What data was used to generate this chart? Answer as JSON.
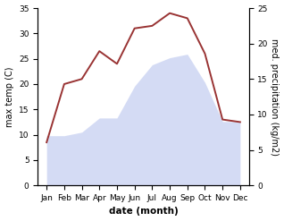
{
  "months": [
    "Jan",
    "Feb",
    "Mar",
    "Apr",
    "May",
    "Jun",
    "Jul",
    "Aug",
    "Sep",
    "Oct",
    "Nov",
    "Dec"
  ],
  "month_x": [
    0,
    1,
    2,
    3,
    4,
    5,
    6,
    7,
    8,
    9,
    10,
    11
  ],
  "temperature": [
    8.5,
    20.0,
    21.0,
    26.5,
    24.0,
    31.0,
    31.5,
    34.0,
    33.0,
    26.0,
    13.0,
    12.5
  ],
  "precipitation": [
    7.0,
    7.0,
    7.5,
    9.5,
    9.5,
    14.0,
    17.0,
    18.0,
    18.5,
    14.5,
    9.0,
    9.0
  ],
  "temp_color": "#993333",
  "precip_fill_color": "#b8c4ee",
  "precip_alpha": 0.6,
  "ylim_left": [
    0,
    35
  ],
  "ylim_right": [
    0,
    25
  ],
  "xlabel": "date (month)",
  "ylabel_left": "max temp (C)",
  "ylabel_right": "med. precipitation (kg/m2)",
  "bg_color": "#ffffff",
  "yticks_left": [
    0,
    5,
    10,
    15,
    20,
    25,
    30,
    35
  ],
  "yticks_right": [
    0,
    5,
    10,
    15,
    20,
    25
  ],
  "title_fontsize": 8,
  "label_fontsize": 7,
  "tick_fontsize": 6.5
}
